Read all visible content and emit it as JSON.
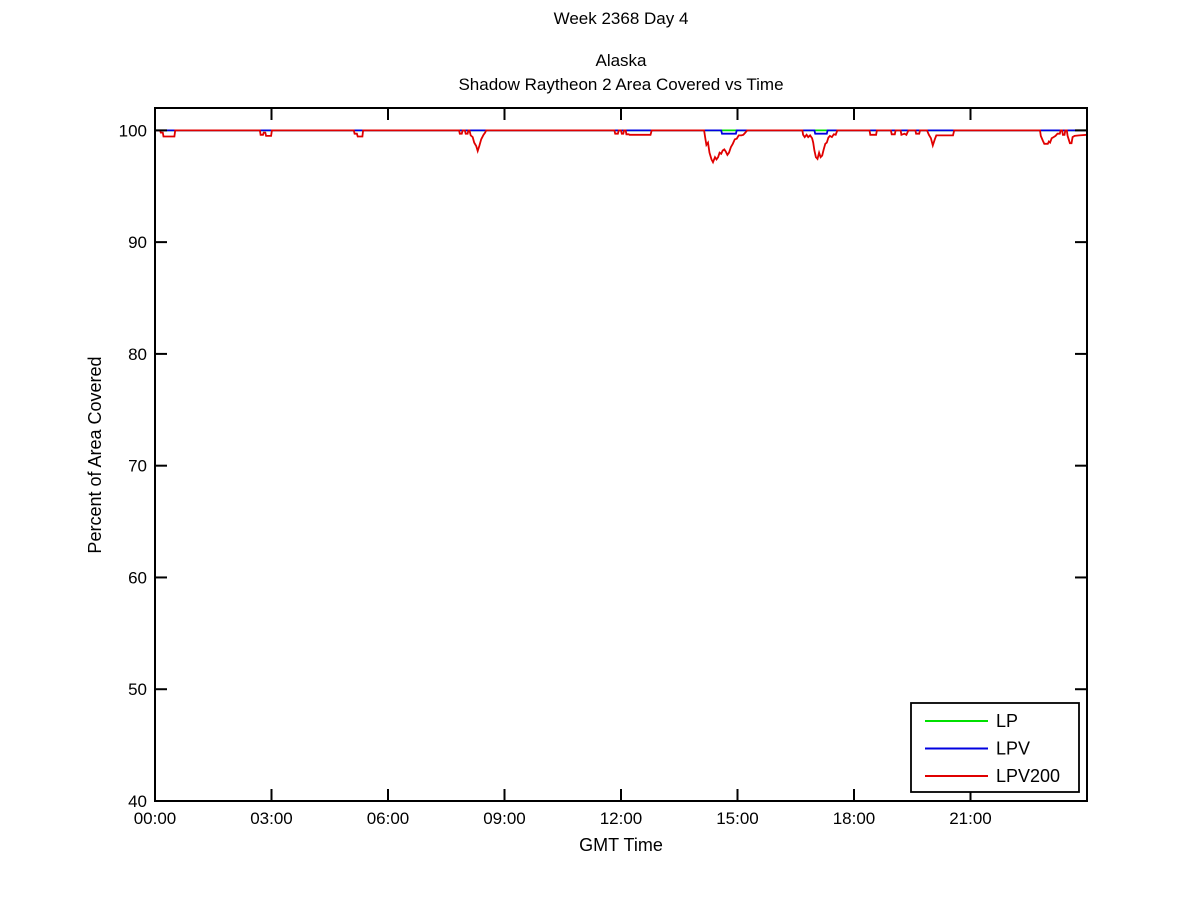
{
  "suptitle": "Week 2368 Day 4",
  "chart_data": {
    "type": "line",
    "title_lines": [
      "Alaska",
      "Shadow Raytheon 2 Area Covered vs Time"
    ],
    "xlabel": "GMT Time",
    "ylabel": "Percent of Area Covered",
    "xlim_hours": [
      0,
      24
    ],
    "ylim": [
      40,
      102
    ],
    "x_ticks": [
      {
        "hour": 0,
        "label": "00:00"
      },
      {
        "hour": 3,
        "label": "03:00"
      },
      {
        "hour": 6,
        "label": "06:00"
      },
      {
        "hour": 9,
        "label": "09:00"
      },
      {
        "hour": 12,
        "label": "12:00"
      },
      {
        "hour": 15,
        "label": "15:00"
      },
      {
        "hour": 18,
        "label": "18:00"
      },
      {
        "hour": 21,
        "label": "21:00"
      }
    ],
    "y_ticks": [
      40,
      50,
      60,
      70,
      80,
      90,
      100
    ],
    "grid": false,
    "legend": {
      "position": "bottom-right",
      "entries": [
        "LP",
        "LPV",
        "LPV200"
      ]
    },
    "series": [
      {
        "name": "LP",
        "color": "#00E000",
        "points": [
          [
            0,
            100
          ],
          [
            24,
            100
          ]
        ]
      },
      {
        "name": "LPV",
        "color": "#0000E0",
        "points": [
          [
            0,
            100
          ],
          [
            14.58,
            100
          ],
          [
            14.6,
            99.7
          ],
          [
            14.96,
            99.7
          ],
          [
            14.98,
            100
          ],
          [
            16.98,
            100
          ],
          [
            17.0,
            99.7
          ],
          [
            17.3,
            99.7
          ],
          [
            17.32,
            100
          ],
          [
            24,
            100
          ]
        ]
      },
      {
        "name": "LPV200",
        "color": "#E00000",
        "points": [
          [
            0,
            100
          ],
          [
            0.13,
            100
          ],
          [
            0.15,
            99.8
          ],
          [
            0.2,
            99.8
          ],
          [
            0.22,
            99.45
          ],
          [
            0.5,
            99.45
          ],
          [
            0.52,
            100
          ],
          [
            2.7,
            100
          ],
          [
            2.72,
            99.6
          ],
          [
            2.78,
            99.6
          ],
          [
            2.8,
            99.8
          ],
          [
            2.84,
            99.8
          ],
          [
            2.86,
            99.5
          ],
          [
            2.99,
            99.5
          ],
          [
            3.01,
            100
          ],
          [
            5.12,
            100
          ],
          [
            5.14,
            99.7
          ],
          [
            5.2,
            99.7
          ],
          [
            5.22,
            99.45
          ],
          [
            5.34,
            99.45
          ],
          [
            5.36,
            100
          ],
          [
            7.83,
            100
          ],
          [
            7.85,
            99.7
          ],
          [
            7.9,
            99.7
          ],
          [
            7.92,
            100
          ],
          [
            7.98,
            100
          ],
          [
            8.0,
            99.7
          ],
          [
            8.05,
            99.7
          ],
          [
            8.07,
            100
          ],
          [
            8.1,
            100
          ],
          [
            8.13,
            99.55
          ],
          [
            8.18,
            99.4
          ],
          [
            8.22,
            98.9
          ],
          [
            8.27,
            98.6
          ],
          [
            8.31,
            98.15
          ],
          [
            8.35,
            98.6
          ],
          [
            8.4,
            99.2
          ],
          [
            8.46,
            99.6
          ],
          [
            8.5,
            99.8
          ],
          [
            8.53,
            100
          ],
          [
            11.83,
            100
          ],
          [
            11.85,
            99.7
          ],
          [
            11.92,
            99.7
          ],
          [
            11.94,
            100
          ],
          [
            12.0,
            100
          ],
          [
            12.02,
            99.7
          ],
          [
            12.06,
            99.7
          ],
          [
            12.08,
            100
          ],
          [
            12.12,
            100
          ],
          [
            12.14,
            99.65
          ],
          [
            12.2,
            99.65
          ],
          [
            12.22,
            99.6
          ],
          [
            12.76,
            99.6
          ],
          [
            12.79,
            100
          ],
          [
            14.14,
            100
          ],
          [
            14.17,
            99.3
          ],
          [
            14.2,
            98.7
          ],
          [
            14.24,
            98.9
          ],
          [
            14.28,
            98.0
          ],
          [
            14.33,
            97.4
          ],
          [
            14.37,
            97.15
          ],
          [
            14.42,
            97.6
          ],
          [
            14.46,
            97.4
          ],
          [
            14.5,
            97.6
          ],
          [
            14.54,
            98.0
          ],
          [
            14.58,
            97.9
          ],
          [
            14.62,
            98.2
          ],
          [
            14.66,
            98.3
          ],
          [
            14.7,
            98.1
          ],
          [
            14.74,
            97.8
          ],
          [
            14.78,
            98.0
          ],
          [
            14.83,
            98.5
          ],
          [
            14.88,
            98.8
          ],
          [
            14.93,
            99.2
          ],
          [
            14.98,
            99.25
          ],
          [
            15.03,
            99.55
          ],
          [
            15.1,
            99.55
          ],
          [
            15.15,
            99.6
          ],
          [
            15.2,
            99.8
          ],
          [
            15.25,
            100
          ],
          [
            16.67,
            100
          ],
          [
            16.69,
            99.6
          ],
          [
            16.73,
            99.4
          ],
          [
            16.78,
            99.6
          ],
          [
            16.82,
            99.4
          ],
          [
            16.87,
            99.55
          ],
          [
            16.92,
            99.3
          ],
          [
            16.95,
            98.9
          ],
          [
            16.98,
            98.2
          ],
          [
            17.02,
            97.6
          ],
          [
            17.06,
            97.45
          ],
          [
            17.1,
            98.0
          ],
          [
            17.14,
            97.6
          ],
          [
            17.18,
            97.75
          ],
          [
            17.22,
            98.3
          ],
          [
            17.26,
            98.8
          ],
          [
            17.3,
            98.9
          ],
          [
            17.34,
            99.35
          ],
          [
            17.38,
            99.5
          ],
          [
            17.43,
            99.4
          ],
          [
            17.48,
            99.65
          ],
          [
            17.53,
            99.6
          ],
          [
            17.57,
            100
          ],
          [
            18.4,
            100
          ],
          [
            18.42,
            99.6
          ],
          [
            18.57,
            99.6
          ],
          [
            18.59,
            100
          ],
          [
            18.95,
            100
          ],
          [
            18.97,
            99.65
          ],
          [
            19.05,
            99.65
          ],
          [
            19.07,
            100
          ],
          [
            19.2,
            100
          ],
          [
            19.22,
            99.6
          ],
          [
            19.3,
            99.7
          ],
          [
            19.35,
            99.6
          ],
          [
            19.4,
            100
          ],
          [
            19.58,
            100
          ],
          [
            19.6,
            99.7
          ],
          [
            19.68,
            99.7
          ],
          [
            19.7,
            100
          ],
          [
            19.88,
            100
          ],
          [
            19.93,
            99.6
          ],
          [
            19.98,
            99.3
          ],
          [
            20.03,
            98.65
          ],
          [
            20.08,
            99.2
          ],
          [
            20.12,
            99.55
          ],
          [
            20.55,
            99.55
          ],
          [
            20.58,
            100
          ],
          [
            22.79,
            100
          ],
          [
            22.81,
            99.5
          ],
          [
            22.86,
            99.1
          ],
          [
            22.9,
            98.8
          ],
          [
            22.99,
            98.8
          ],
          [
            23.02,
            99.0
          ],
          [
            23.05,
            98.9
          ],
          [
            23.09,
            99.3
          ],
          [
            23.14,
            99.4
          ],
          [
            23.19,
            99.5
          ],
          [
            23.24,
            99.7
          ],
          [
            23.3,
            99.7
          ],
          [
            23.32,
            100
          ],
          [
            23.36,
            100
          ],
          [
            23.38,
            99.6
          ],
          [
            23.42,
            99.6
          ],
          [
            23.44,
            100
          ],
          [
            23.48,
            100
          ],
          [
            23.5,
            99.5
          ],
          [
            23.56,
            98.85
          ],
          [
            23.6,
            98.85
          ],
          [
            23.63,
            99.4
          ],
          [
            23.68,
            99.5
          ],
          [
            23.8,
            99.55
          ],
          [
            24,
            99.6
          ]
        ]
      }
    ]
  },
  "colors": {
    "axis": "#000000",
    "background": "#ffffff"
  }
}
